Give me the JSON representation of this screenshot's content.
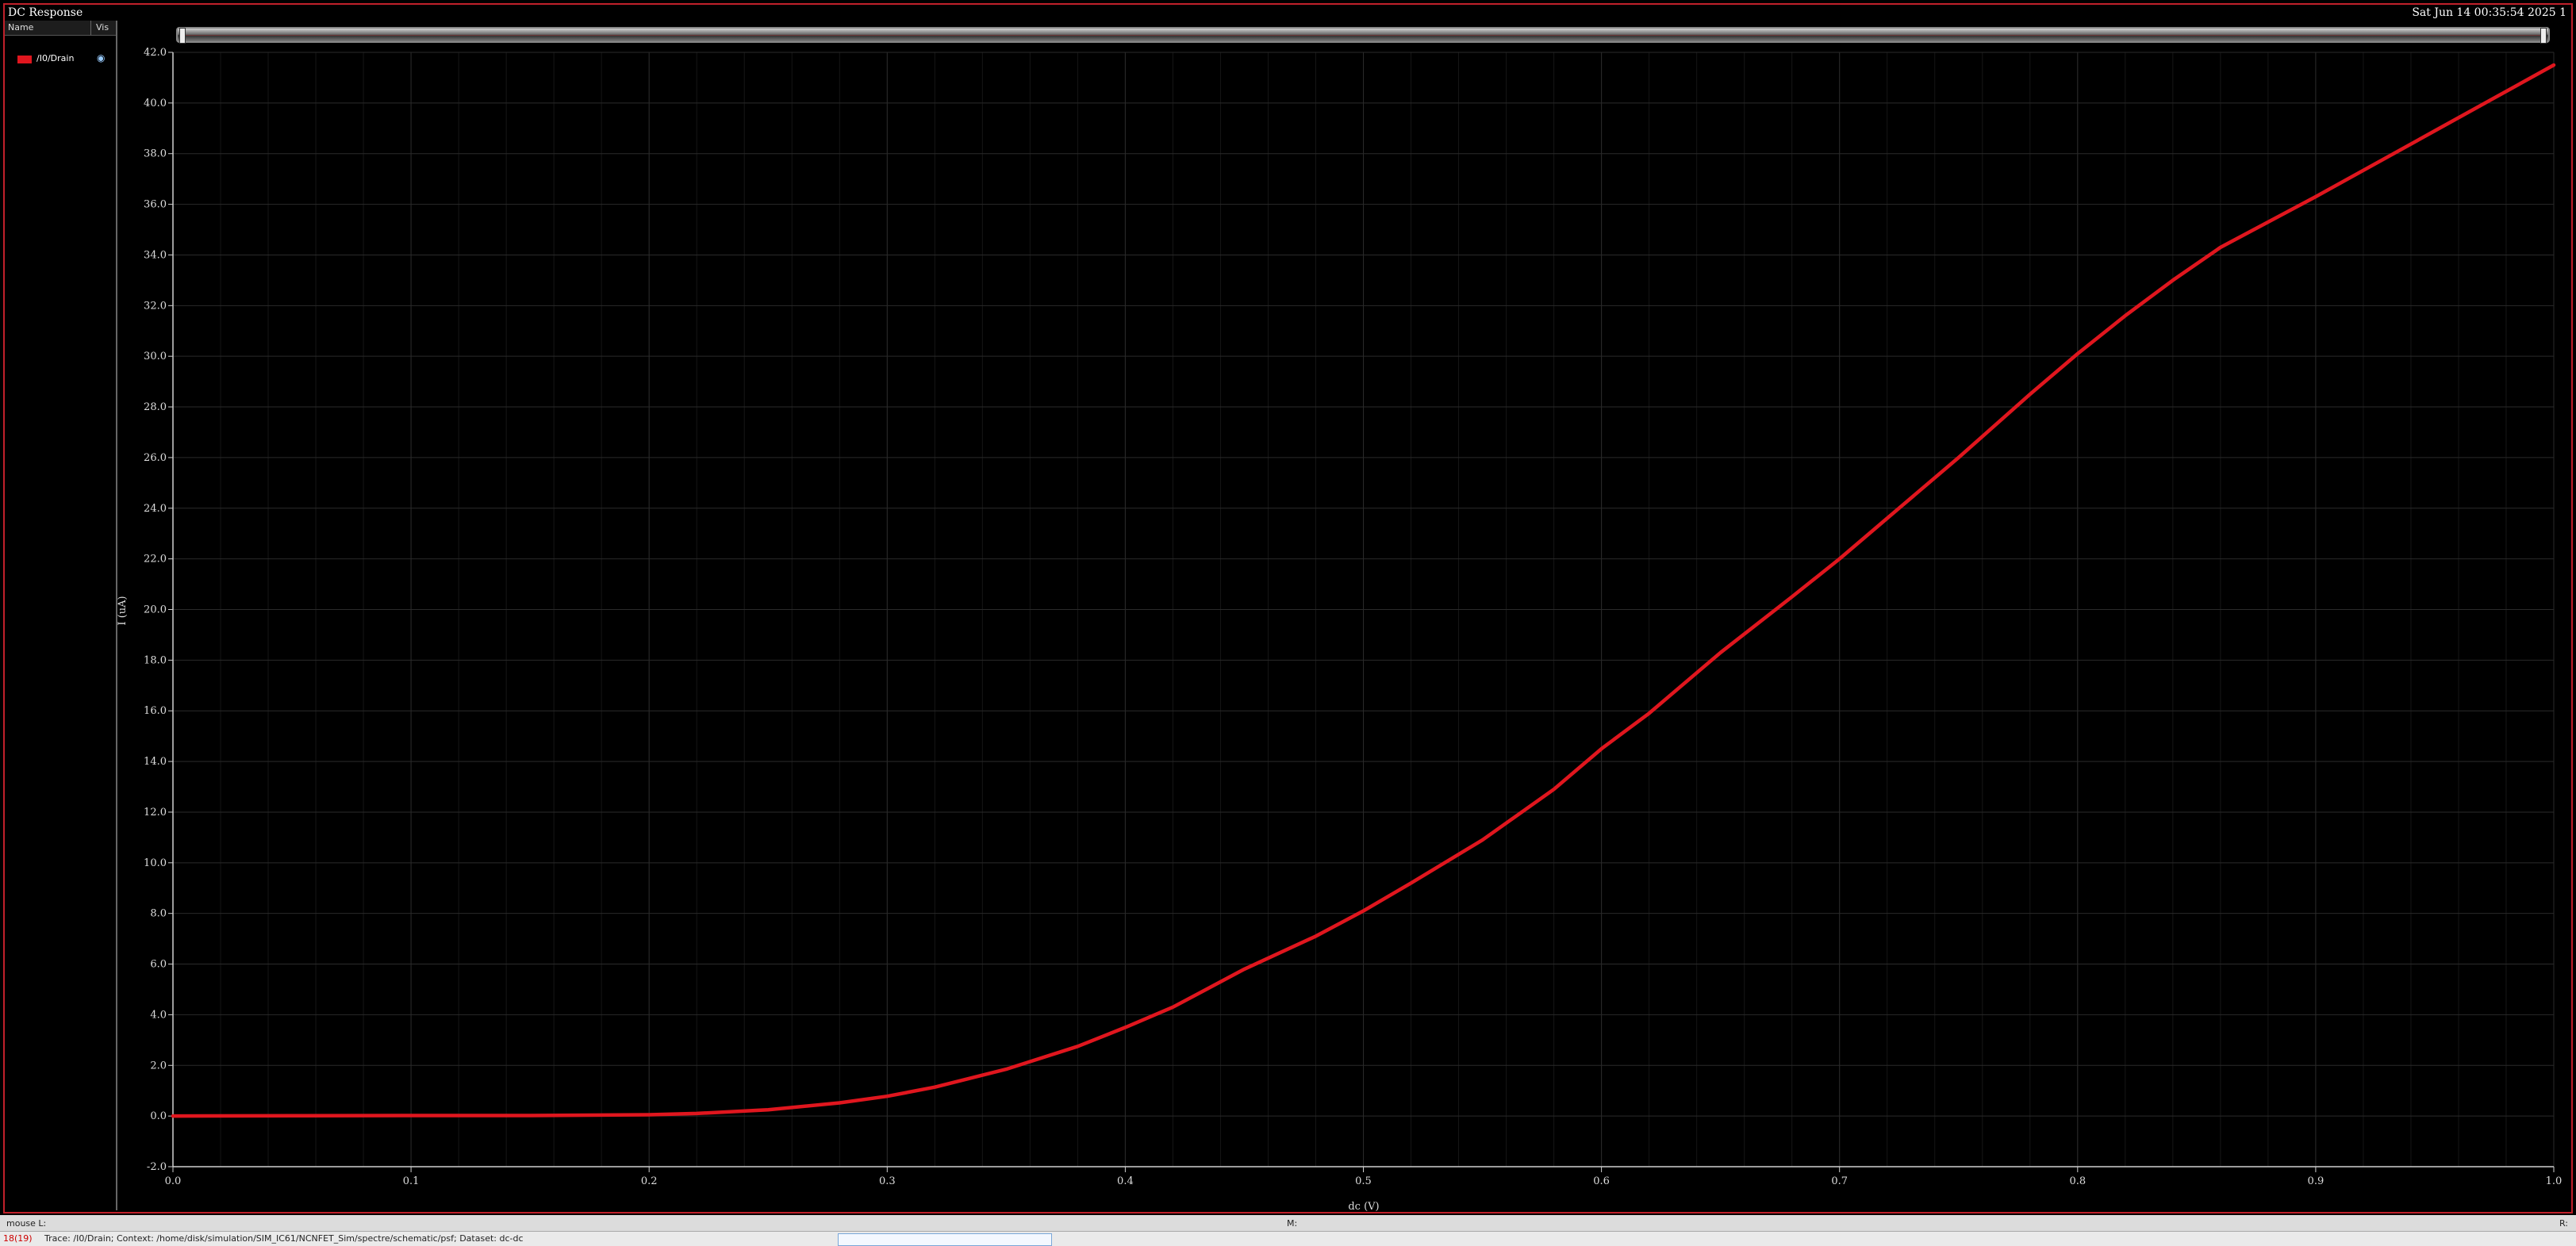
{
  "window": {
    "title": "DC Response",
    "datestamp": "Sat Jun 14 00:35:54 2025  1"
  },
  "legend": {
    "header_name": "Name",
    "header_vis": "Vis",
    "items": [
      {
        "label": "/I0/Drain",
        "color": "#e0161e",
        "icon": "eye-icon"
      }
    ]
  },
  "status": {
    "mouse_label": "mouse L:",
    "m_label": "M:",
    "r_label": "R:",
    "count": "18(19)",
    "trace_text": "Trace: /I0/Drain; Context: /home/disk/simulation/SIM_IC61/NCNFET_Sim/spectre/schematic/psf; Dataset: dc-dc"
  },
  "colors": {
    "trace": "#e0161e",
    "frame": "#c0202a",
    "grid": "#2a2a2a",
    "axis": "#cfcfcf",
    "background": "#000000"
  },
  "chart_data": {
    "type": "line",
    "title": "",
    "xlabel": "dc (V)",
    "ylabel": "I (uA)",
    "xlim": [
      0.0,
      1.0
    ],
    "ylim": [
      -2.0,
      42.0
    ],
    "grid": true,
    "legend_position": "left-panel",
    "x_ticks": [
      0.0,
      0.1,
      0.2,
      0.3,
      0.4,
      0.5,
      0.6,
      0.7,
      0.8,
      0.9,
      1.0
    ],
    "x_tick_labels": [
      "0.0",
      "0.1",
      "0.2",
      "0.3",
      "0.4",
      "0.5",
      "0.6",
      "0.7",
      "0.8",
      "0.9",
      "1.0"
    ],
    "y_ticks": [
      -2,
      0,
      2,
      4,
      6,
      8,
      10,
      12,
      14,
      16,
      18,
      20,
      22,
      24,
      26,
      28,
      30,
      32,
      34,
      36,
      38,
      40,
      42
    ],
    "y_tick_labels": [
      "-2.0",
      "0.0",
      "2.0",
      "4.0",
      "6.0",
      "8.0",
      "10.0",
      "12.0",
      "14.0",
      "16.0",
      "18.0",
      "20.0",
      "22.0",
      "24.0",
      "26.0",
      "28.0",
      "30.0",
      "32.0",
      "34.0",
      "36.0",
      "38.0",
      "40.0",
      "42.0"
    ],
    "series": [
      {
        "name": "/I0/Drain",
        "x": [
          0.0,
          0.05,
          0.1,
          0.15,
          0.2,
          0.22,
          0.25,
          0.28,
          0.3,
          0.32,
          0.35,
          0.38,
          0.4,
          0.42,
          0.45,
          0.48,
          0.5,
          0.52,
          0.55,
          0.58,
          0.6,
          0.62,
          0.65,
          0.68,
          0.7,
          0.72,
          0.75,
          0.78,
          0.8,
          0.82,
          0.84,
          0.86,
          0.9,
          0.95,
          1.0
        ],
        "y": [
          0.0,
          0.01,
          0.02,
          0.02,
          0.05,
          0.1,
          0.25,
          0.52,
          0.78,
          1.14,
          1.85,
          2.75,
          3.5,
          4.3,
          5.8,
          7.1,
          8.1,
          9.2,
          10.9,
          12.9,
          14.5,
          15.9,
          18.3,
          20.5,
          22.0,
          23.6,
          26.0,
          28.5,
          30.1,
          31.6,
          33.0,
          34.3,
          36.3,
          38.9,
          41.5
        ]
      }
    ]
  }
}
